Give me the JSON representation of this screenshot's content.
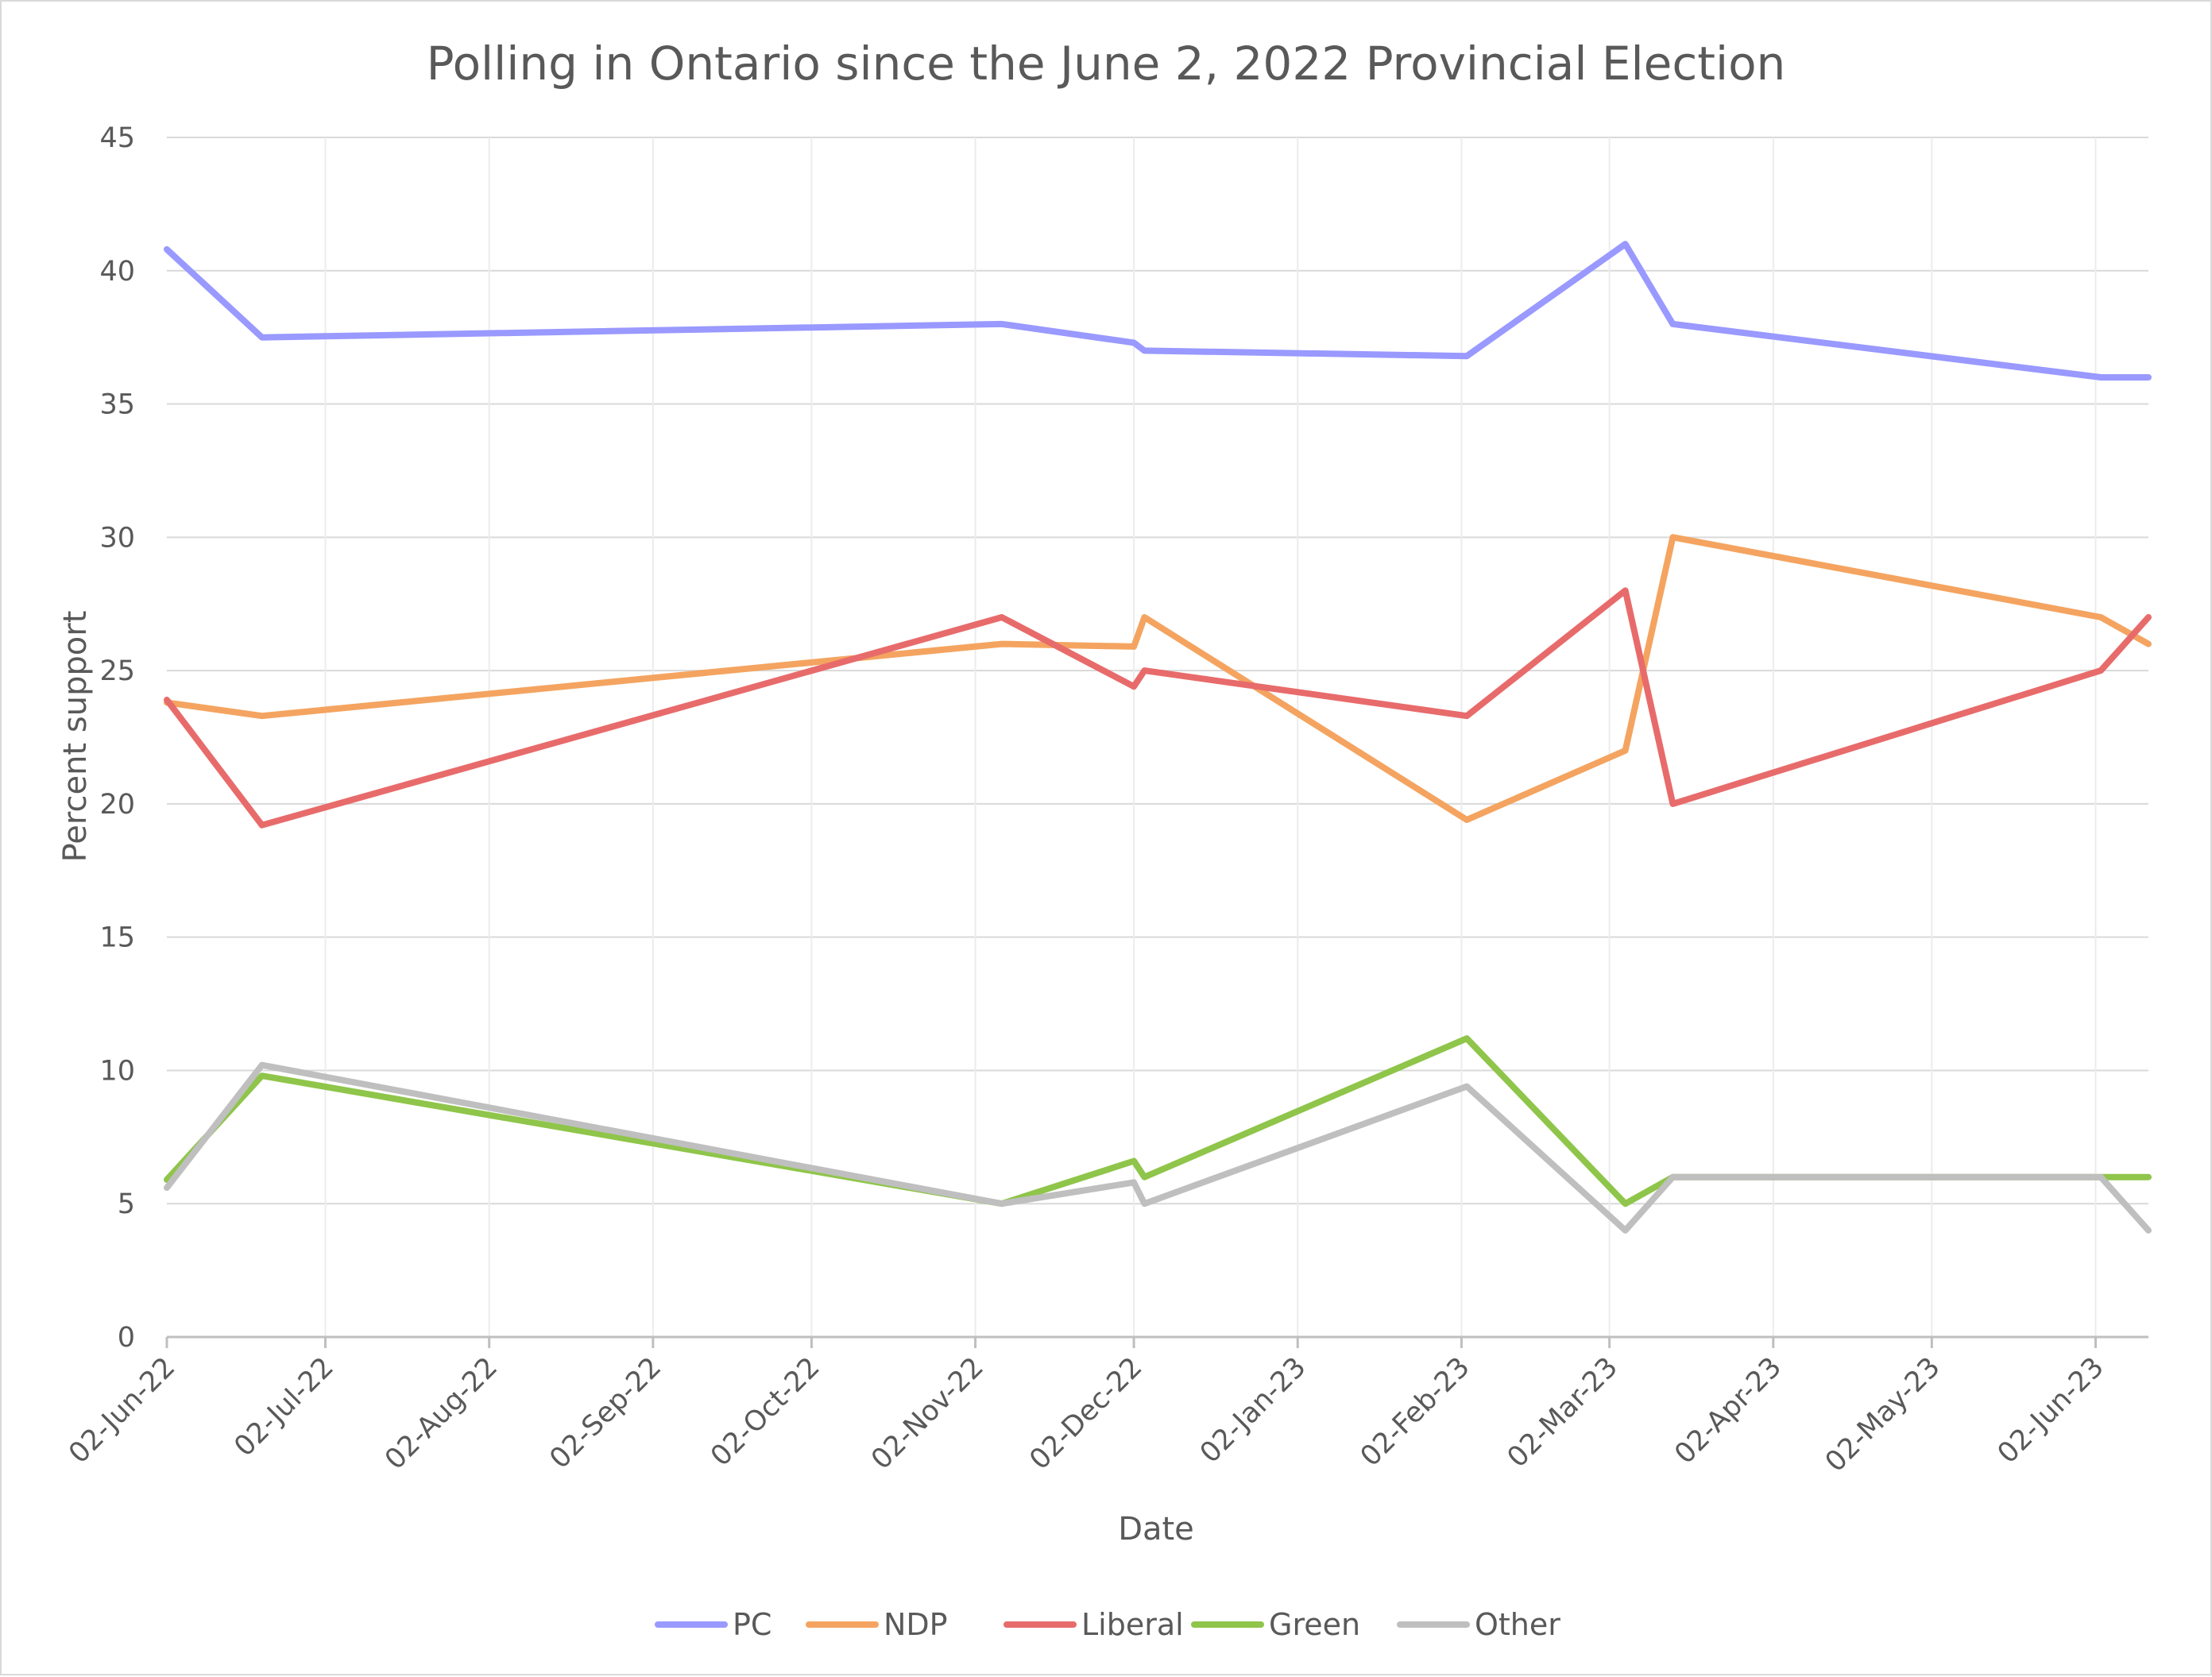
{
  "chart_data": {
    "type": "line",
    "title": "Polling in Ontario since the June 2, 2022 Provincial Election",
    "xlabel": "Date",
    "ylabel": "Percent support",
    "ylim": [
      0,
      45
    ],
    "yticks": [
      0,
      5,
      10,
      15,
      20,
      25,
      30,
      35,
      40,
      45
    ],
    "xlim": [
      "2022-06-02",
      "2023-06-12"
    ],
    "xticks": [
      {
        "date": "2022-06-02",
        "label": "02-Jun-22"
      },
      {
        "date": "2022-07-02",
        "label": "02-Jul-22"
      },
      {
        "date": "2022-08-02",
        "label": "02-Aug-22"
      },
      {
        "date": "2022-09-02",
        "label": "02-Sep-22"
      },
      {
        "date": "2022-10-02",
        "label": "02-Oct-22"
      },
      {
        "date": "2022-11-02",
        "label": "02-Nov-22"
      },
      {
        "date": "2022-12-02",
        "label": "02-Dec-22"
      },
      {
        "date": "2023-01-02",
        "label": "02-Jan-23"
      },
      {
        "date": "2023-02-02",
        "label": "02-Feb-23"
      },
      {
        "date": "2023-03-02",
        "label": "02-Mar-23"
      },
      {
        "date": "2023-04-02",
        "label": "02-Apr-23"
      },
      {
        "date": "2023-05-02",
        "label": "02-May-23"
      },
      {
        "date": "2023-06-02",
        "label": "02-Jun-23"
      }
    ],
    "grid": true,
    "legend_position": "bottom",
    "x": [
      "2022-06-02",
      "2022-06-20",
      "2022-11-07",
      "2022-12-02",
      "2022-12-04",
      "2023-02-03",
      "2023-03-05",
      "2023-03-14",
      "2023-06-03",
      "2023-06-12"
    ],
    "series": [
      {
        "name": "PC",
        "color": "#9999ff",
        "values": [
          40.8,
          37.5,
          38.0,
          37.3,
          37.0,
          36.8,
          41.0,
          38.0,
          36.0,
          36.0
        ]
      },
      {
        "name": "NDP",
        "color": "#f4a460",
        "values": [
          23.8,
          23.3,
          26.0,
          25.9,
          27.0,
          19.4,
          22.0,
          30.0,
          27.0,
          26.0
        ]
      },
      {
        "name": "Liberal",
        "color": "#e86b6b",
        "values": [
          23.9,
          19.2,
          27.0,
          24.4,
          25.0,
          23.3,
          28.0,
          20.0,
          25.0,
          27.0
        ]
      },
      {
        "name": "Green",
        "color": "#8fc54a",
        "values": [
          5.9,
          9.8,
          5.0,
          6.6,
          6.0,
          11.2,
          5.0,
          6.0,
          6.0,
          6.0
        ]
      },
      {
        "name": "Other",
        "color": "#bfbfbf",
        "values": [
          5.6,
          10.2,
          5.0,
          5.8,
          5.0,
          9.4,
          4.0,
          6.0,
          6.0,
          4.0
        ]
      }
    ]
  }
}
